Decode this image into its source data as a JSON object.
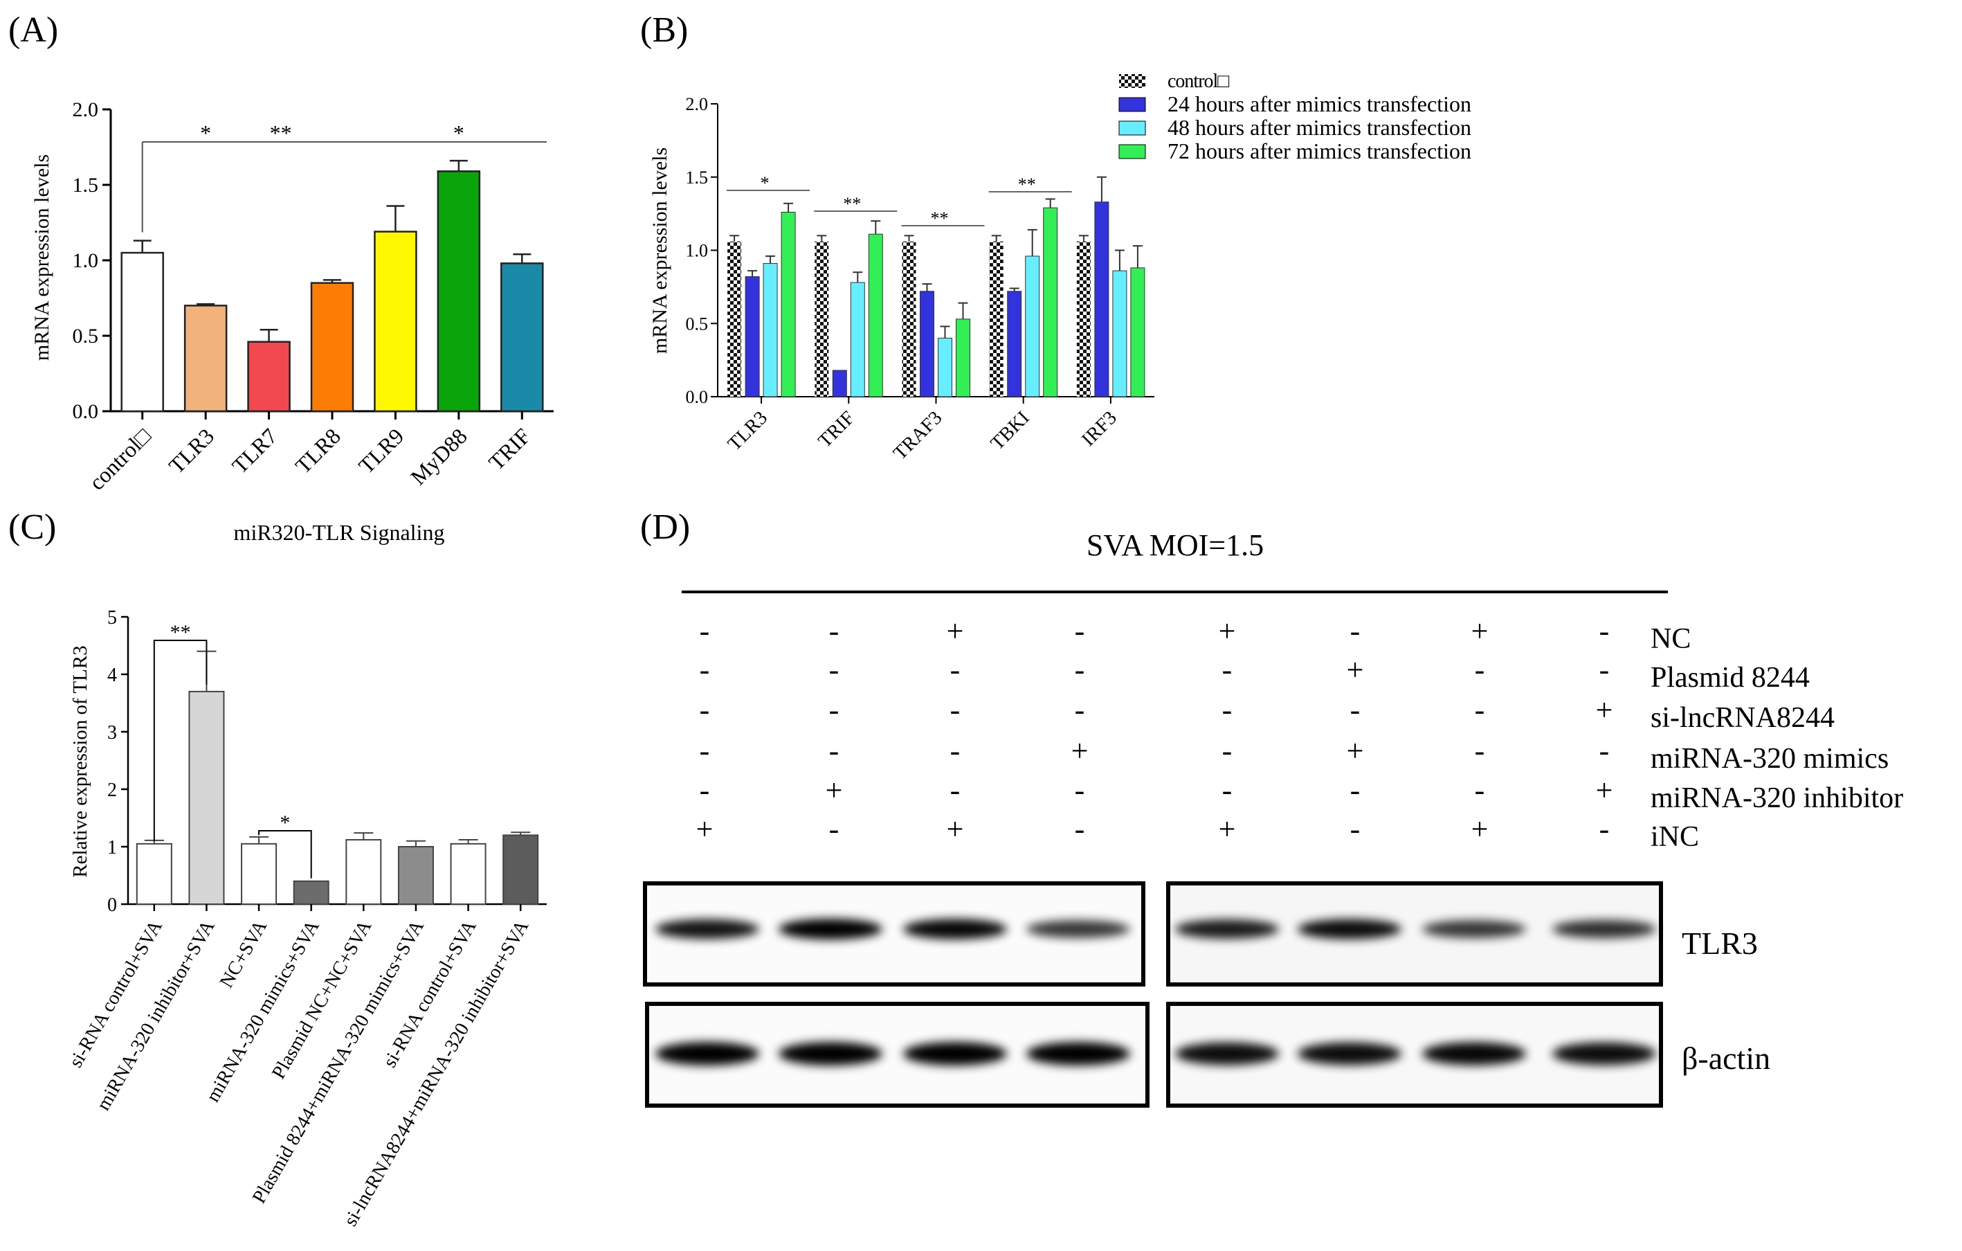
{
  "panels": [
    {
      "label": "(A)",
      "x": 12,
      "y": 52
    },
    {
      "label": "(B)",
      "x": 925,
      "y": 52
    },
    {
      "label": "(C)",
      "x": 12,
      "y": 770
    },
    {
      "label": "(D)",
      "x": 925,
      "y": 770
    }
  ],
  "colors": {
    "A": [
      "#ffffff",
      "#f2b27c",
      "#f2484f",
      "#fb7d05",
      "#fdf700",
      "#0aa50a",
      "#1a8aa8"
    ],
    "B_series": [
      "checker",
      "#3333dd",
      "#66eeff",
      "#33ee55"
    ],
    "C": [
      "#ffffff",
      "#d6d6d6",
      "#ffffff",
      "#6c6c6c",
      "#ffffff",
      "#8c8c8c",
      "#ffffff",
      "#5c5c5c"
    ]
  },
  "chart_data": [
    {
      "id": "A",
      "type": "bar",
      "title": "miR320-TLR Signaling",
      "ylabel": "mRNA expression levels",
      "ylim": [
        0,
        2.0
      ],
      "yticks": [
        "0.0",
        "0.5",
        "1.0",
        "1.5",
        "2.0"
      ],
      "categories": [
        "control□",
        "TLR3",
        "TLR7",
        "TLR8",
        "TLR9",
        "MyD88",
        "TRIF"
      ],
      "values": [
        1.05,
        0.7,
        0.46,
        0.85,
        1.19,
        1.59,
        0.98
      ],
      "errors": [
        0.08,
        0.01,
        0.08,
        0.02,
        0.17,
        0.07,
        0.06
      ],
      "annotations": [
        "*",
        "**",
        "*"
      ]
    },
    {
      "id": "B",
      "type": "bar",
      "ylabel": "mRNA expression levels",
      "ylim": [
        0,
        2.0
      ],
      "yticks": [
        "0.0",
        "0.5",
        "1.0",
        "1.5",
        "2.0"
      ],
      "categories": [
        "TLR3",
        "TRIF",
        "TRAF3",
        "TBKI",
        "IRF3"
      ],
      "legend_position": "top-right",
      "series": [
        {
          "name": "control□",
          "values": [
            1.06,
            1.06,
            1.06,
            1.06,
            1.06
          ],
          "errors": [
            0.04,
            0.04,
            0.04,
            0.04,
            0.04
          ]
        },
        {
          "name": "24 hours after mimics transfection",
          "values": [
            0.82,
            0.18,
            0.72,
            0.72,
            1.33
          ],
          "errors": [
            0.04,
            0.0,
            0.05,
            0.02,
            0.17
          ]
        },
        {
          "name": "48 hours after mimics transfection",
          "values": [
            0.91,
            0.78,
            0.4,
            0.96,
            0.86
          ],
          "errors": [
            0.05,
            0.07,
            0.08,
            0.18,
            0.14
          ]
        },
        {
          "name": "72 hours after mimics transfection",
          "values": [
            1.26,
            1.11,
            0.53,
            1.29,
            0.88
          ],
          "errors": [
            0.06,
            0.09,
            0.11,
            0.06,
            0.15
          ]
        }
      ],
      "annotations": [
        "*",
        "**",
        "**",
        "**"
      ]
    },
    {
      "id": "C",
      "type": "bar",
      "ylabel": "Relative expression of TLR3",
      "ylim": [
        0,
        5
      ],
      "yticks": [
        "0",
        "1",
        "2",
        "3",
        "4",
        "5"
      ],
      "categories": [
        "si-RNA control+SVA",
        "miRNA-320 inhibitor+SVA",
        "NC+SVA",
        "miRNA-320 mimics+SVA",
        "Plasmid NC+NC+SVA",
        "Plasmid 8244+miRNA-320 mimics+SVA",
        "si-RNA control+SVA",
        "si-lncRNA8244+miRNA-320 inhibitor+SVA"
      ],
      "values": [
        1.05,
        3.7,
        1.05,
        0.4,
        1.12,
        1.0,
        1.05,
        1.2
      ],
      "errors": [
        0.06,
        0.7,
        0.12,
        0.0,
        0.12,
        0.1,
        0.07,
        0.05
      ],
      "annotations": [
        "**",
        "*"
      ]
    }
  ],
  "panel_d": {
    "title": "SVA MOI=1.5",
    "rows": [
      {
        "label": "NC",
        "marks": [
          "-",
          "-",
          "+",
          "-",
          "+",
          "-",
          "+",
          "-"
        ]
      },
      {
        "label": "Plasmid 8244",
        "marks": [
          "-",
          "-",
          "-",
          "-",
          "-",
          "+",
          "-",
          "-"
        ]
      },
      {
        "label": "si-lncRNA8244",
        "marks": [
          "-",
          "-",
          "-",
          "-",
          "-",
          "-",
          "-",
          "+"
        ]
      },
      {
        "label": "miRNA-320 mimics",
        "marks": [
          "-",
          "-",
          "-",
          "+",
          "-",
          "+",
          "-",
          "-"
        ]
      },
      {
        "label": "miRNA-320 inhibitor",
        "marks": [
          "-",
          "+",
          "-",
          "-",
          "-",
          "-",
          "-",
          "+"
        ]
      },
      {
        "label": "iNC",
        "marks": [
          "+",
          "-",
          "+",
          "-",
          "+",
          "-",
          "+",
          "-"
        ]
      }
    ],
    "blots": [
      {
        "label": "TLR3",
        "intensity": [
          0.85,
          1.0,
          0.95,
          0.6,
          0.8,
          0.9,
          0.6,
          0.65
        ]
      },
      {
        "label": "β-actin",
        "intensity": [
          1.0,
          1.0,
          1.0,
          1.0,
          0.9,
          0.9,
          0.95,
          0.9
        ]
      }
    ]
  }
}
